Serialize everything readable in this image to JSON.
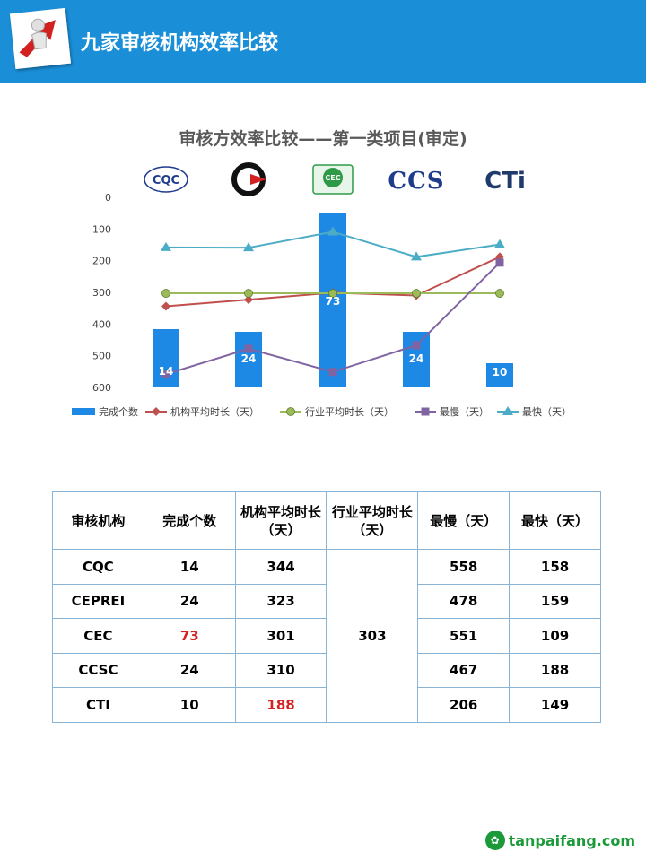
{
  "header": {
    "title": "九家审核机构效率比较",
    "logo_icon": "3d-figure-with-red-arrow-icon"
  },
  "chart_data": {
    "type": "bar+line",
    "title": "审核方效率比较——第一类项目(审定)",
    "categories": [
      "CQC",
      "CEPREI",
      "CEC",
      "CCSC",
      "CTI"
    ],
    "category_logos": [
      "cqc-logo-icon",
      "ceprei-logo-icon",
      "cec-logo-icon",
      "ccs-logo-icon",
      "cti-logo-icon"
    ],
    "logo_texts": [
      "CQC",
      "",
      "CEC",
      "CCS",
      "CTi"
    ],
    "y_axis": {
      "ticks": [
        "0",
        "100",
        "200",
        "300",
        "400",
        "500",
        "600"
      ],
      "min": 0,
      "max": 600,
      "reversed": true
    },
    "bars": {
      "name": "完成个数",
      "values": [
        14,
        24,
        73,
        24,
        10
      ],
      "labels": [
        "14",
        "24",
        "73",
        "24",
        "10"
      ],
      "color": "#1e88e5"
    },
    "series": [
      {
        "name": "机构平均时长（天）",
        "values": [
          344,
          323,
          301,
          310,
          188
        ],
        "color": "#c0504d",
        "marker": "diamond"
      },
      {
        "name": "行业平均时长（天）",
        "values": [
          303,
          303,
          303,
          303,
          303
        ],
        "color": "#9bbb59",
        "marker": "circle"
      },
      {
        "name": "最慢（天）",
        "values": [
          558,
          478,
          551,
          467,
          206
        ],
        "color": "#8064a2",
        "marker": "square"
      },
      {
        "name": "最快（天）",
        "values": [
          158,
          159,
          109,
          188,
          149
        ],
        "color": "#4bacc6",
        "marker": "triangle"
      }
    ],
    "legend_position": "bottom"
  },
  "table": {
    "headers": [
      "审核机构",
      "完成个数",
      "机构平均时长（天）",
      "行业平均时长（天）",
      "最慢（天）",
      "最快（天）"
    ],
    "rows": [
      {
        "org": "CQC",
        "count": "14",
        "avg": "344",
        "slow": "558",
        "fast": "158"
      },
      {
        "org": "CEPREI",
        "count": "24",
        "avg": "323",
        "slow": "478",
        "fast": "159"
      },
      {
        "org": "CEC",
        "count": "73",
        "avg": "301",
        "slow": "551",
        "fast": "109"
      },
      {
        "org": "CCSC",
        "count": "24",
        "avg": "310",
        "slow": "467",
        "fast": "188"
      },
      {
        "org": "CTI",
        "count": "10",
        "avg": "188",
        "slow": "206",
        "fast": "149"
      }
    ],
    "industry_avg": "303",
    "highlight_color": "#d32020"
  },
  "watermark": {
    "text": "tanpaifang.com",
    "icon": "leaf-logo-icon"
  }
}
